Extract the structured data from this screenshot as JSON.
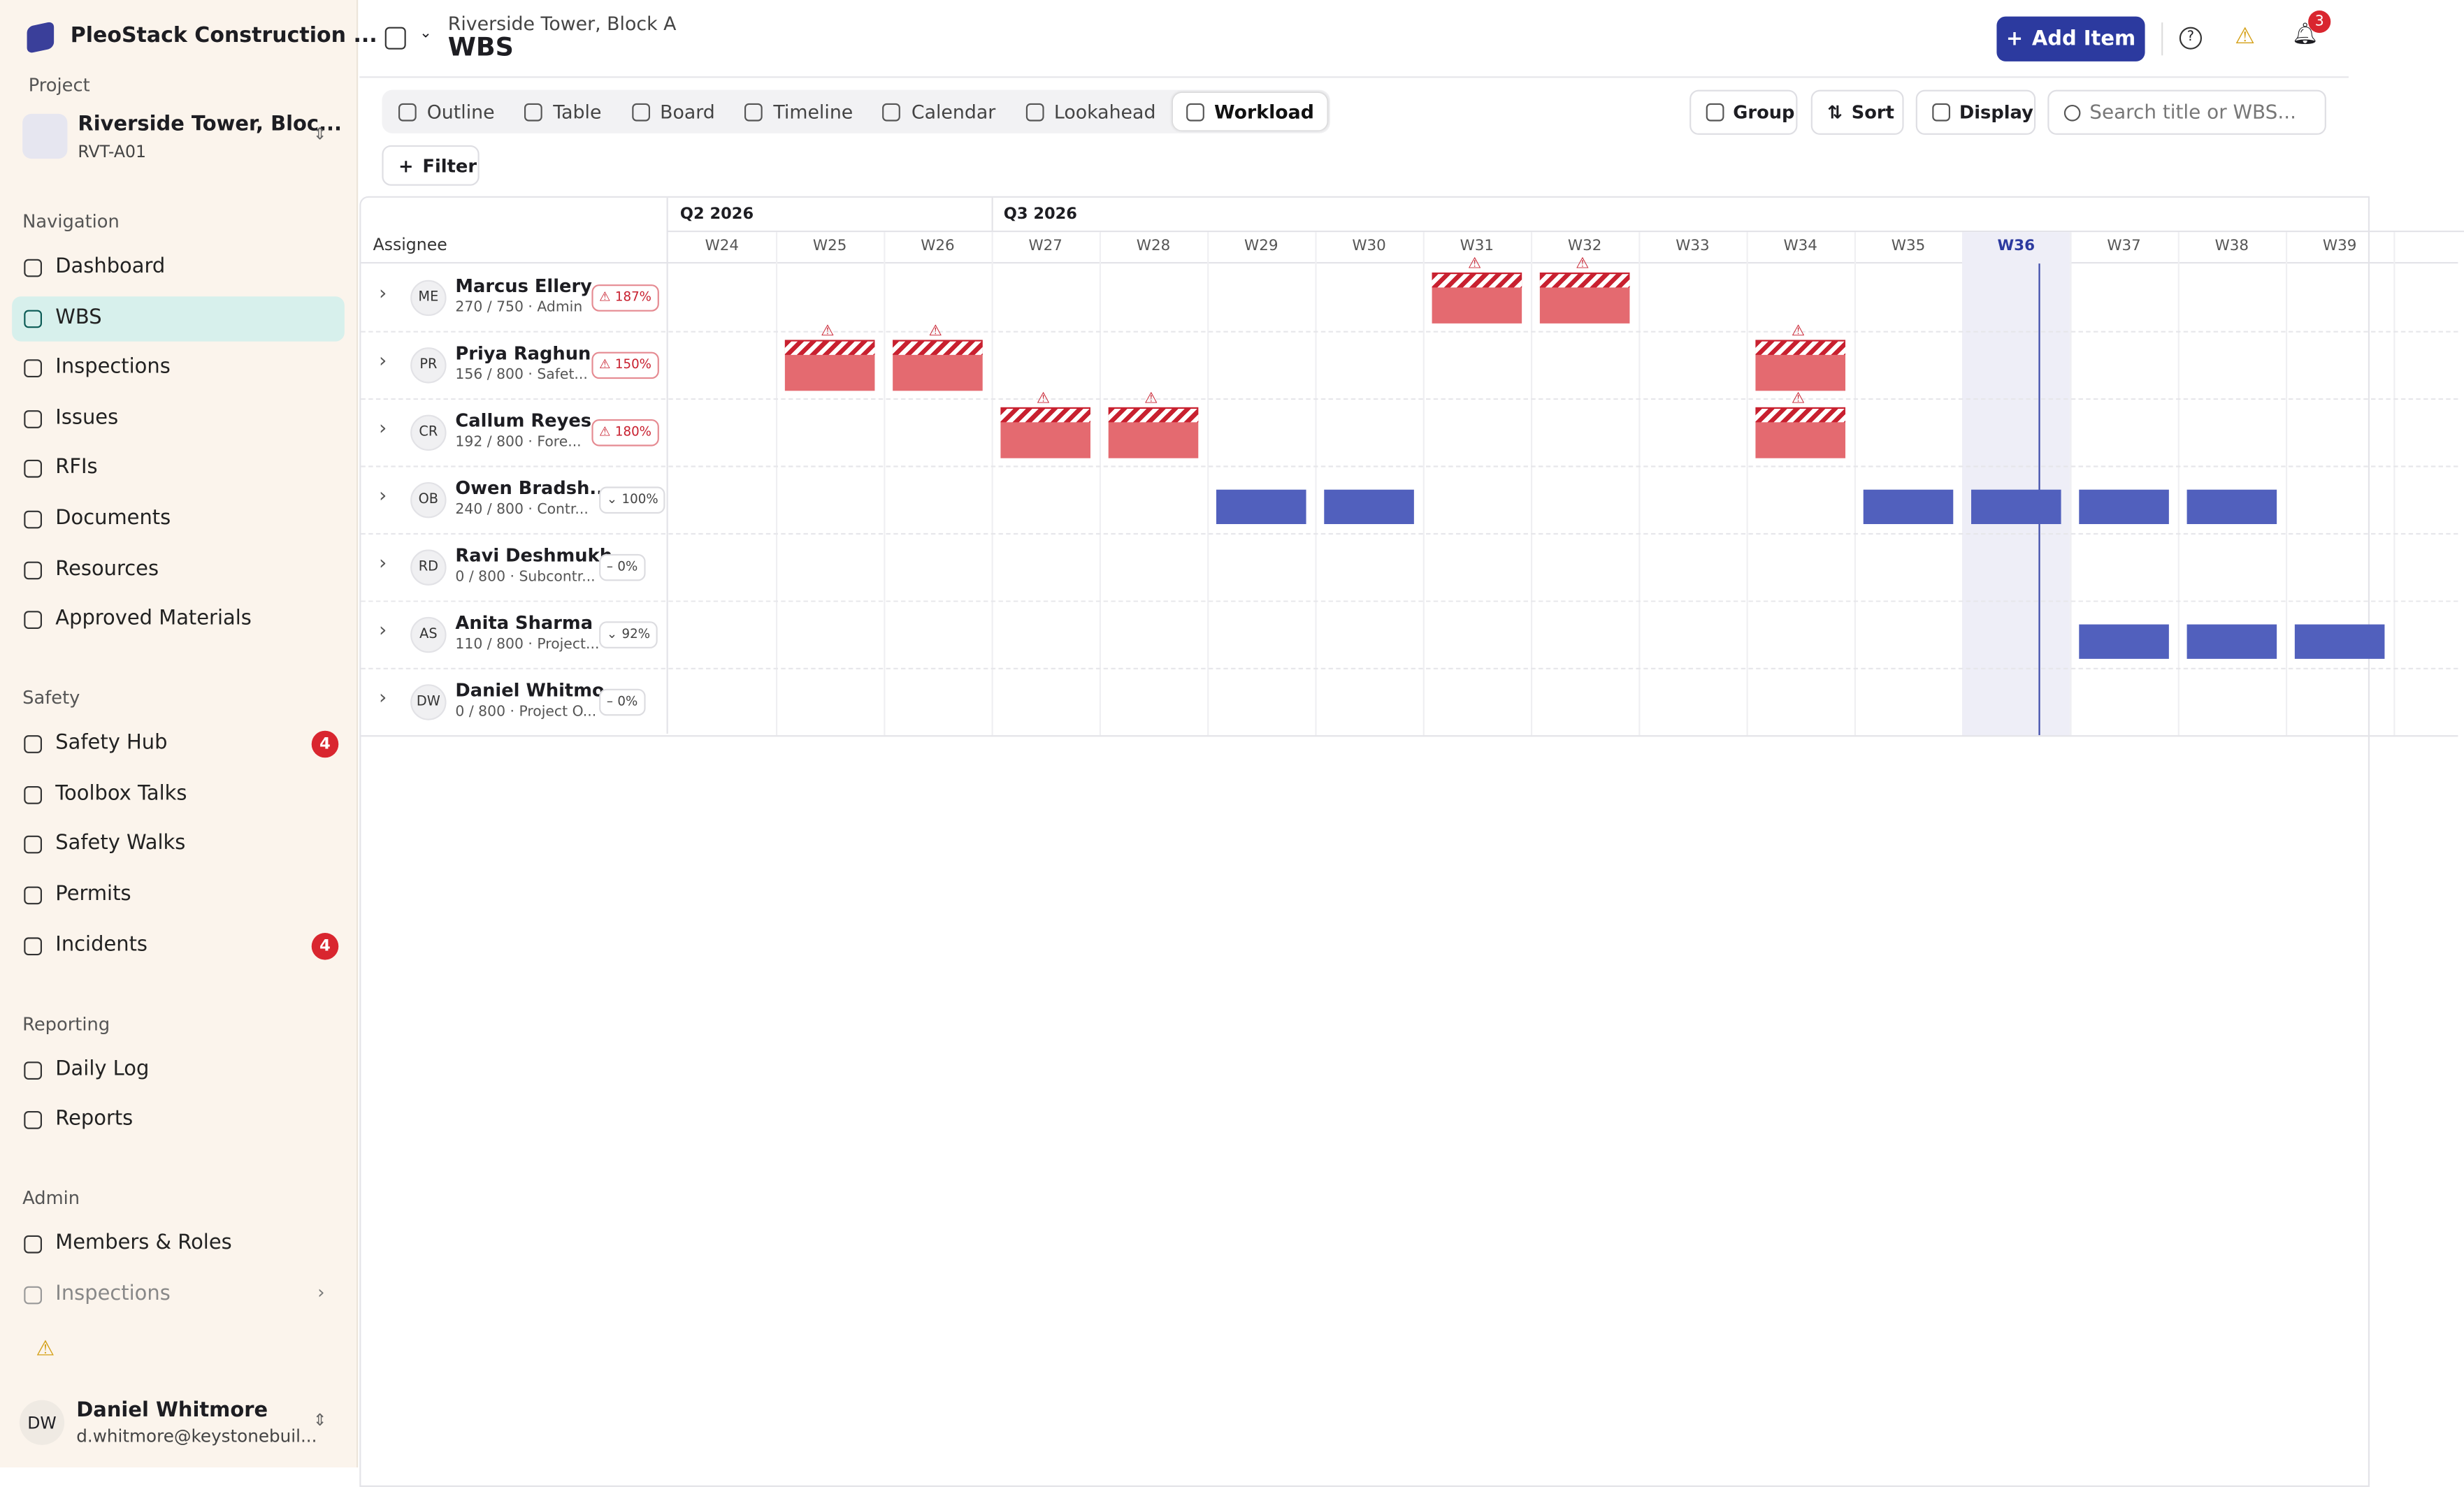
{
  "sidebar": {
    "app_name": "PleoStack Construction ...",
    "project": {
      "label": "Project",
      "name": "Riverside Tower, Bloc...",
      "code": "RVT-A01"
    },
    "sections": [
      {
        "title": "Navigation",
        "items": [
          {
            "label": "Dashboard"
          },
          {
            "label": "WBS",
            "active": true
          },
          {
            "label": "Inspections"
          },
          {
            "label": "Issues"
          },
          {
            "label": "RFIs"
          },
          {
            "label": "Documents"
          },
          {
            "label": "Resources"
          },
          {
            "label": "Approved Materials"
          }
        ]
      },
      {
        "title": "Safety",
        "items": [
          {
            "label": "Safety Hub",
            "badge": "4"
          },
          {
            "label": "Toolbox Talks"
          },
          {
            "label": "Safety Walks"
          },
          {
            "label": "Permits"
          },
          {
            "label": "Incidents",
            "badge": "4"
          }
        ]
      },
      {
        "title": "Reporting",
        "items": [
          {
            "label": "Daily Log"
          },
          {
            "label": "Reports"
          }
        ]
      },
      {
        "title": "Admin",
        "items": [
          {
            "label": "Members & Roles"
          },
          {
            "label": "Inspections",
            "has_submenu": true
          }
        ]
      }
    ],
    "user": {
      "initials": "DW",
      "name": "Daniel Whitmore",
      "email": "d.whitmore@keystonebuil..."
    }
  },
  "header": {
    "breadcrumb": "Riverside Tower, Block A",
    "title": "WBS",
    "add_button": "Add Item",
    "notification_count": "3"
  },
  "views": {
    "tabs": [
      {
        "label": "Outline"
      },
      {
        "label": "Table"
      },
      {
        "label": "Board"
      },
      {
        "label": "Timeline"
      },
      {
        "label": "Calendar"
      },
      {
        "label": "Lookahead"
      },
      {
        "label": "Workload",
        "active": true
      }
    ]
  },
  "toolbar": {
    "group": "Group",
    "sort": "Sort",
    "display": "Display",
    "search_placeholder": "Search title or WBS...",
    "filter": "Filter"
  },
  "workload": {
    "assignee_header": "Assignee",
    "quarters": [
      {
        "label": "Q2 2026",
        "start": "W24"
      },
      {
        "label": "Q3 2026",
        "start": "W27"
      }
    ],
    "weeks": [
      "W24",
      "W25",
      "W26",
      "W27",
      "W28",
      "W29",
      "W30",
      "W31",
      "W32",
      "W33",
      "W34",
      "W35",
      "W36",
      "W37",
      "W38",
      "W39"
    ],
    "current_week": "W36",
    "rows": [
      {
        "initials": "ME",
        "name": "Marcus Ellery",
        "detail": "270 / 750 · Admin",
        "load": "187%",
        "status": "over",
        "bars": [
          "W31",
          "W32"
        ]
      },
      {
        "initials": "PR",
        "name": "Priya Raghun...",
        "detail": "156 / 800 · Safet...",
        "load": "150%",
        "status": "over",
        "bars": [
          "W25",
          "W26",
          "W34"
        ]
      },
      {
        "initials": "CR",
        "name": "Callum Reyes",
        "detail": "192 / 800 · Fore...",
        "load": "180%",
        "status": "over",
        "bars": [
          "W27",
          "W28",
          "W34"
        ]
      },
      {
        "initials": "OB",
        "name": "Owen Bradsh...",
        "detail": "240 / 800 · Contr...",
        "load": "100%",
        "status": "ok",
        "bars": [
          "W29",
          "W30",
          "W35",
          "W36",
          "W37",
          "W38"
        ]
      },
      {
        "initials": "RD",
        "name": "Ravi Deshmukh",
        "detail": "0 / 800 · Subcontr...",
        "load": "0%",
        "status": "none",
        "bars": []
      },
      {
        "initials": "AS",
        "name": "Anita Sharma",
        "detail": "110 / 800 · Project...",
        "load": "92%",
        "status": "ok",
        "bars": [
          "W37",
          "W38",
          "W39"
        ]
      },
      {
        "initials": "DW",
        "name": "Daniel Whitmo...",
        "detail": "0 / 800 · Project O...",
        "load": "0%",
        "status": "none",
        "bars": []
      }
    ]
  }
}
